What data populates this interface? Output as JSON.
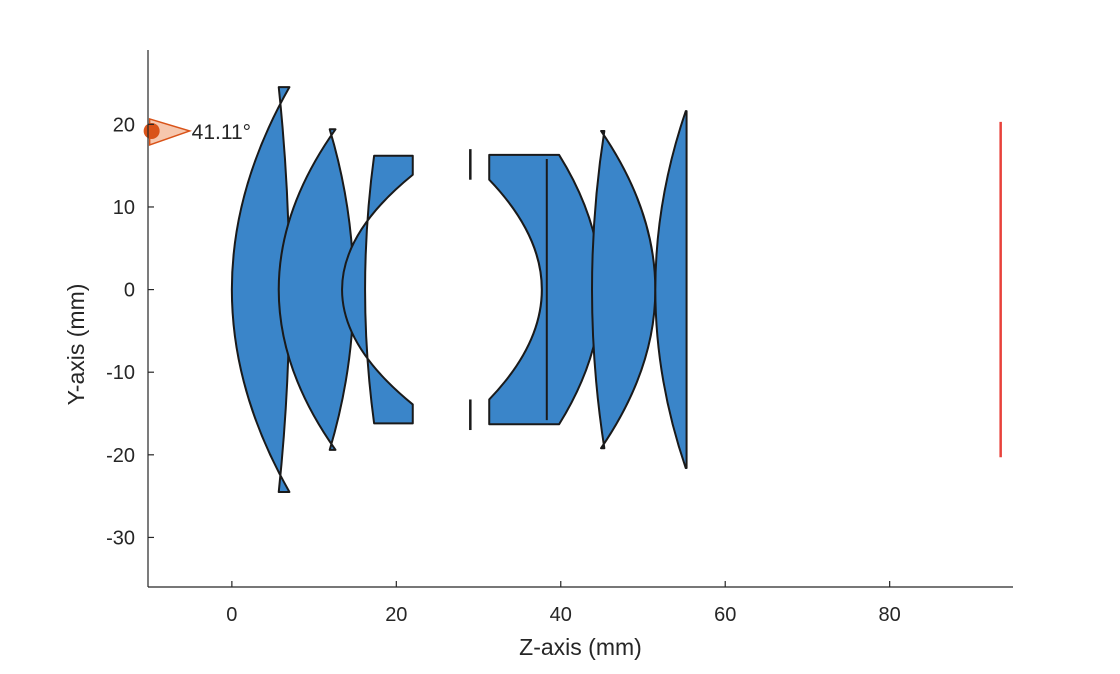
{
  "chart_data": {
    "type": "lens-layout",
    "xlabel": "Z-axis (mm)",
    "ylabel": "Y-axis (mm)",
    "xlim": [
      -10.2,
      95
    ],
    "ylim": [
      -36,
      29
    ],
    "xticks": [
      0,
      20,
      40,
      60,
      80
    ],
    "yticks": [
      20,
      10,
      0,
      -10,
      -20,
      -30
    ],
    "grid": false,
    "field_angle": {
      "label": "41.11°",
      "z": -10,
      "y": 19.2
    },
    "lens_color": "#3A85C9",
    "edge_color": "#1A1A1A",
    "ray_marker_color": "#D95319",
    "image_plane_color": "#E8423B",
    "elements": [
      {
        "name": "lens-1",
        "z_front": 0,
        "z_back": 7.0,
        "semi_height": 24.5,
        "front_sag": 7.0,
        "back_sag": 1.3
      },
      {
        "name": "lens-2",
        "z_front": 5.7,
        "z_back": 14.8,
        "semi_height": 19.4,
        "front_sag": 6.9,
        "back_sag": 2.9
      },
      {
        "name": "lens-3",
        "z_front": 16.2,
        "z_back": 22.0,
        "semi_height": 16.2,
        "front_sag": 1.1,
        "back_sag": 8.6
      },
      {
        "name": "lens-4",
        "z_front": 31.3,
        "z_back": 45.0,
        "semi_height": 16.3,
        "front_sag": 5.2,
        "back_sag": 5.0
      },
      {
        "name": "lens-5",
        "z_front": 43.8,
        "z_back": 51.5,
        "semi_height": 19.2,
        "front_sag": 1.5,
        "back_sag": 6.6
      },
      {
        "name": "lens-6",
        "z_front": 51.5,
        "z_back": 55.3,
        "semi_height": 21.6,
        "front_sag": 3.7,
        "back_sag": 0
      }
    ],
    "stop": {
      "z": 29.0,
      "inner": 13.3,
      "outer": 17.0
    },
    "cemented_interface": {
      "z": 38.3,
      "semi_height": 15.8
    },
    "image_plane": {
      "z": 93.5,
      "semi_height": 20.3
    }
  }
}
